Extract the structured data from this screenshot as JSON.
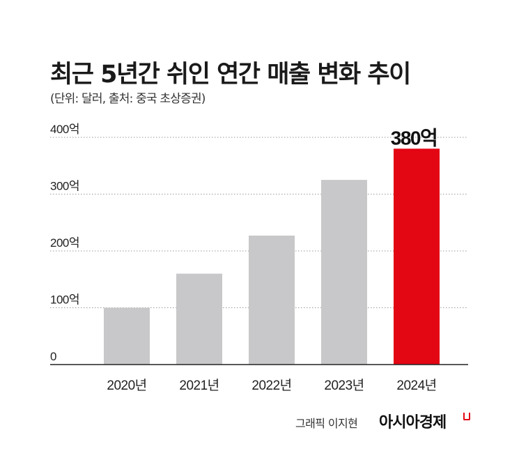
{
  "title": "최근 5년간 쉬인 연간 매출 변화 추이",
  "subtitle": "(단위: 달러, 출처: 중국 초상증권)",
  "credit": "그래픽 이지현",
  "publisher": "아시아경제",
  "colors": {
    "bar": "#c8c8ca",
    "highlight": "#e30613",
    "grid": "#999999",
    "axis": "#222222"
  },
  "chart_data": {
    "type": "bar",
    "categories": [
      "2020년",
      "2021년",
      "2022년",
      "2023년",
      "2024년"
    ],
    "values": [
      100,
      160,
      227,
      325,
      380
    ],
    "ylim": [
      0,
      400
    ],
    "yticks": [
      0,
      100,
      200,
      300,
      400
    ],
    "ytick_labels": [
      "0",
      "100억",
      "200억",
      "300억",
      "400억"
    ],
    "highlight_index": 4,
    "data_labels": [
      "",
      "",
      "",
      "",
      "380억"
    ],
    "grid": "dotted horizontal",
    "legend": "none"
  }
}
